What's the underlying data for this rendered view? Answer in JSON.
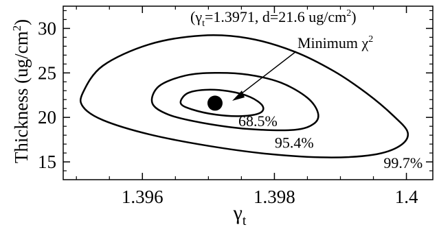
{
  "chart_data": {
    "type": "contour",
    "title": "",
    "xlabel": {
      "base": "γ",
      "sub": "t"
    },
    "ylabel": {
      "main": "Thickness (ug/cm",
      "sup": "2",
      "tail": ")"
    },
    "xlim": [
      1.3948,
      1.4004
    ],
    "ylim": [
      13,
      32.5
    ],
    "xticks": [
      {
        "value": 1.396,
        "label": "1.396"
      },
      {
        "value": 1.398,
        "label": "1.398"
      },
      {
        "value": 1.4,
        "label": "1.4"
      }
    ],
    "yticks": [
      {
        "value": 15,
        "label": "15"
      },
      {
        "value": 20,
        "label": "20"
      },
      {
        "value": 25,
        "label": "25"
      },
      {
        "value": 30,
        "label": "30"
      }
    ],
    "minimum": {
      "x": 1.3971,
      "y": 21.6
    },
    "minimum_label": {
      "p1": "(γ",
      "p1_sub": "t",
      "p2": "=1.3971, d=21.6 ug/cm",
      "p2_sup": "2",
      "p3": ")"
    },
    "arrow_label": {
      "main": "Minimum χ",
      "sup": "2"
    },
    "contours": [
      {
        "name": "68.5%",
        "label_at": {
          "x": 1.39775,
          "y": 19.0
        },
        "points": [
          [
            1.39658,
            21.6
          ],
          [
            1.39668,
            22.7
          ],
          [
            1.39695,
            23.1
          ],
          [
            1.3973,
            22.95
          ],
          [
            1.39763,
            22.3
          ],
          [
            1.39782,
            21.3
          ],
          [
            1.39778,
            20.5
          ],
          [
            1.3975,
            20.15
          ],
          [
            1.39712,
            20.3
          ],
          [
            1.39675,
            20.9
          ],
          [
            1.39658,
            21.6
          ]
        ]
      },
      {
        "name": "95.4%",
        "label_at": {
          "x": 1.3983,
          "y": 16.6
        },
        "points": [
          [
            1.39615,
            21.6
          ],
          [
            1.39625,
            23.5
          ],
          [
            1.39665,
            24.7
          ],
          [
            1.3971,
            25.0
          ],
          [
            1.3976,
            24.8
          ],
          [
            1.3981,
            23.9
          ],
          [
            1.3985,
            22.2
          ],
          [
            1.39866,
            20.5
          ],
          [
            1.3986,
            19.3
          ],
          [
            1.3983,
            18.6
          ],
          [
            1.3976,
            18.7
          ],
          [
            1.3969,
            19.4
          ],
          [
            1.3964,
            20.3
          ],
          [
            1.39615,
            21.6
          ]
        ]
      },
      {
        "name": "99.7%",
        "label_at": {
          "x": 1.39995,
          "y": 14.3
        },
        "points": [
          [
            1.3951,
            22.8
          ],
          [
            1.3954,
            25.8
          ],
          [
            1.3961,
            28.2
          ],
          [
            1.3969,
            29.2
          ],
          [
            1.3976,
            28.9
          ],
          [
            1.3983,
            27.4
          ],
          [
            1.3989,
            25.2
          ],
          [
            1.3994,
            22.7
          ],
          [
            1.3998,
            20.2
          ],
          [
            1.40002,
            18.3
          ],
          [
            1.3999,
            16.8
          ],
          [
            1.3995,
            15.8
          ],
          [
            1.3988,
            15.5
          ],
          [
            1.3979,
            15.9
          ],
          [
            1.397,
            16.8
          ],
          [
            1.3961,
            18.1
          ],
          [
            1.3954,
            19.7
          ],
          [
            1.3951,
            21.2
          ],
          [
            1.3951,
            22.8
          ]
        ]
      }
    ],
    "colors": {
      "line": "#000000",
      "background": "#ffffff"
    }
  }
}
